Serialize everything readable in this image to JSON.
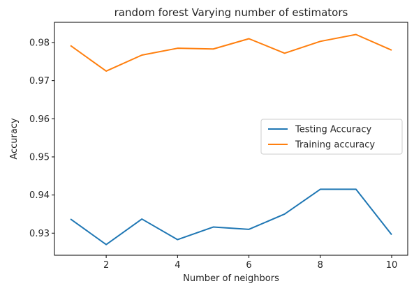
{
  "chart_data": {
    "type": "line",
    "title": "random forest Varying number of estimators",
    "xlabel": "Number of neighbors",
    "ylabel": "Accuracy",
    "x": [
      1,
      2,
      3,
      4,
      5,
      6,
      7,
      8,
      9,
      10
    ],
    "xticks": [
      2,
      4,
      6,
      8,
      10
    ],
    "yticks": [
      0.93,
      0.94,
      0.95,
      0.96,
      0.97,
      0.98
    ],
    "xlim": [
      0.55,
      10.45
    ],
    "ylim": [
      0.9242,
      0.9853
    ],
    "grid": false,
    "legend_position": "center-right",
    "series": [
      {
        "name": "Testing Accuracy",
        "color": "#1f77b4",
        "values": [
          0.9337,
          0.927,
          0.9337,
          0.9283,
          0.9316,
          0.931,
          0.935,
          0.9415,
          0.9415,
          0.9296
        ]
      },
      {
        "name": "Training accuracy",
        "color": "#ff7f0e",
        "values": [
          0.9792,
          0.9725,
          0.9767,
          0.9785,
          0.9783,
          0.981,
          0.9772,
          0.9803,
          0.9821,
          0.978
        ]
      }
    ]
  }
}
